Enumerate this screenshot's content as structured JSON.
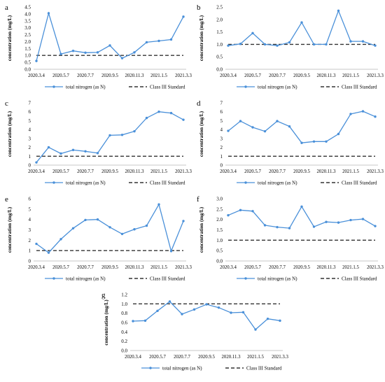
{
  "figure": {
    "legend_line_label": "total nitrogen (as N)",
    "legend_std_label": "Class III Standard",
    "series_color": "#4a90d9",
    "standard_color": "#333333"
  },
  "chart_data": [
    {
      "panel": "a",
      "type": "line",
      "ylabel": "concentration (mg/L)",
      "ylim": [
        0,
        4.5
      ],
      "ytick_step": 0.5,
      "x_tick_labels": [
        "2020.3.4",
        "2020.5.7",
        "2020.7.7",
        "2020.9.5",
        "2020.11.3",
        "2021.1.5",
        "2021.3.3"
      ],
      "series": [
        {
          "name": "total nitrogen (as N)",
          "values": [
            0.6,
            4.05,
            1.1,
            1.33,
            1.2,
            1.22,
            1.72,
            0.8,
            1.22,
            1.95,
            2.05,
            2.15,
            3.8
          ]
        },
        {
          "name": "Class III Standard",
          "values": [
            1.0,
            1.0
          ]
        }
      ],
      "legend": "bottom",
      "grid": false
    },
    {
      "panel": "b",
      "type": "line",
      "ylabel": "concentration (mg/L)",
      "ylim": [
        0,
        2.5
      ],
      "ytick_step": 0.5,
      "x_tick_labels": [
        "2020.3.4",
        "2020.5.7",
        "2020.7.7",
        "2020.9.5",
        "2020.11.3",
        "2021.1.5",
        "2021.3.3"
      ],
      "series": [
        {
          "name": "total nitrogen (as N)",
          "values": [
            0.95,
            1.02,
            1.45,
            1.0,
            0.95,
            1.08,
            1.88,
            1.0,
            1.0,
            2.35,
            1.12,
            1.12,
            0.95
          ]
        },
        {
          "name": "Class III Standard",
          "values": [
            1.0,
            1.0
          ]
        }
      ],
      "legend": "bottom",
      "grid": false
    },
    {
      "panel": "c",
      "type": "line",
      "ylabel": "concentration (mg/L)",
      "ylim": [
        0,
        7
      ],
      "ytick_step": 1,
      "x_tick_labels": [
        "2020.3.4",
        "2020.5.7",
        "2020.7.7",
        "2020.9.5",
        "2020.11.3",
        "2021.1.5",
        "2021.3.3"
      ],
      "series": [
        {
          "name": "total nitrogen (as N)",
          "values": [
            0.3,
            2.0,
            1.3,
            1.7,
            1.55,
            1.35,
            3.35,
            3.4,
            3.8,
            5.3,
            6.0,
            5.85,
            5.1
          ]
        },
        {
          "name": "Class III Standard",
          "values": [
            1.0,
            1.0
          ]
        }
      ],
      "legend": "bottom",
      "grid": false
    },
    {
      "panel": "d",
      "type": "line",
      "ylabel": "concentration (mg/L)",
      "ylim": [
        0,
        7
      ],
      "ytick_step": 1,
      "x_tick_labels": [
        "2020.3.4",
        "2020.5.7",
        "2020.7.7",
        "2020.9.5",
        "2020.11.3",
        "2021.1.5",
        "2021.3.3"
      ],
      "series": [
        {
          "name": "total nitrogen (as N)",
          "values": [
            3.85,
            4.95,
            4.25,
            3.8,
            4.95,
            4.35,
            2.5,
            2.65,
            2.65,
            3.5,
            5.75,
            6.05,
            5.45
          ]
        },
        {
          "name": "Class III Standard",
          "values": [
            1.0,
            1.0
          ]
        }
      ],
      "legend": "bottom",
      "grid": false
    },
    {
      "panel": "e",
      "type": "line",
      "ylabel": "concentration (mg/L)",
      "ylim": [
        0,
        6
      ],
      "ytick_step": 1,
      "x_tick_labels": [
        "2020.3.4",
        "2020.5.7",
        "2020.7.7",
        "2020.9.5",
        "2020.11.3",
        "2021.1.5",
        "2021.3.3"
      ],
      "series": [
        {
          "name": "total nitrogen (as N)",
          "values": [
            1.65,
            0.8,
            2.1,
            3.15,
            3.95,
            4.0,
            3.25,
            2.6,
            3.05,
            3.4,
            5.45,
            0.95,
            3.85
          ]
        },
        {
          "name": "Class III Standard",
          "values": [
            1.0,
            1.0
          ]
        }
      ],
      "legend": "bottom",
      "grid": false
    },
    {
      "panel": "f",
      "type": "line",
      "ylabel": "concentration (mg/L)",
      "ylim": [
        0,
        3
      ],
      "ytick_step": 0.5,
      "x_tick_labels": [
        "2020.3.4",
        "2020.5.7",
        "2020.7.7",
        "2020.9.5",
        "2020.11.3",
        "2021.1.5",
        "2021.3.3"
      ],
      "series": [
        {
          "name": "total nitrogen (as N)",
          "values": [
            2.2,
            2.45,
            2.4,
            1.72,
            1.63,
            1.58,
            2.62,
            1.65,
            1.88,
            1.85,
            1.97,
            2.02,
            1.68
          ]
        },
        {
          "name": "Class III Standard",
          "values": [
            1.0,
            1.0
          ]
        }
      ],
      "legend": "bottom",
      "grid": false
    },
    {
      "panel": "g",
      "type": "line",
      "ylabel": "concentration (mg/L)",
      "ylim": [
        0,
        1.2
      ],
      "ytick_step": 0.2,
      "x_tick_labels": [
        "2020.3.4",
        "2020.5.7",
        "2020.7.7",
        "2020.9.5",
        "2020.11.3",
        "2021.1.5",
        "2021.3.3"
      ],
      "series": [
        {
          "name": "total nitrogen (as N)",
          "values": [
            0.63,
            0.64,
            0.85,
            1.05,
            0.78,
            0.88,
            0.99,
            0.92,
            0.81,
            0.82,
            0.45,
            0.68,
            0.64
          ]
        },
        {
          "name": "Class III Standard",
          "values": [
            1.0,
            1.0
          ]
        }
      ],
      "legend": "bottom",
      "grid": false
    }
  ]
}
